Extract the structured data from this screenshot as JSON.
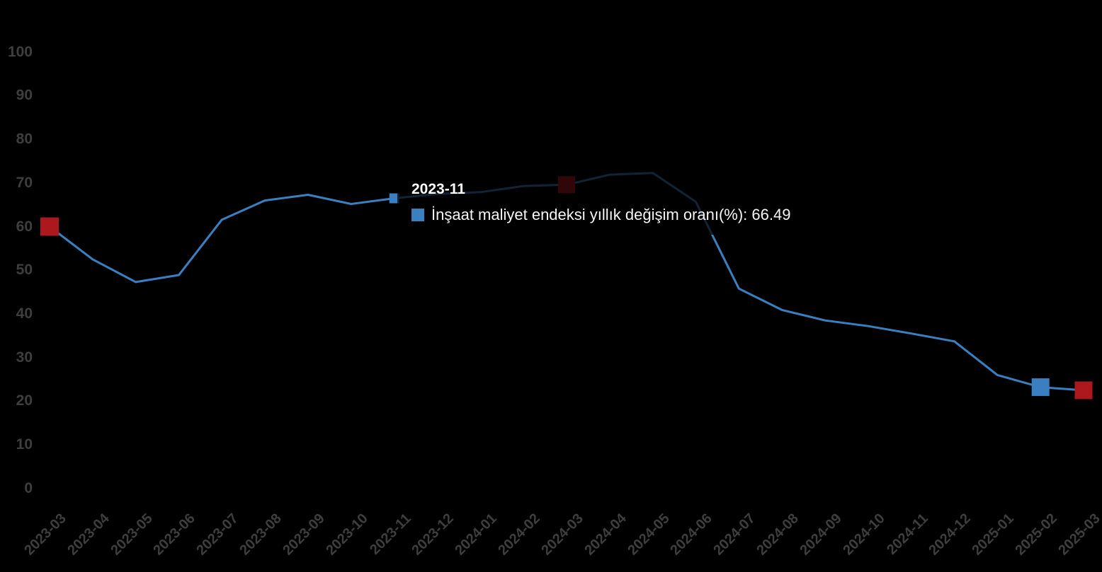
{
  "chart_data": {
    "type": "line",
    "title": "",
    "xlabel": "",
    "ylabel": "",
    "ylim": [
      0,
      100
    ],
    "y_ticks": [
      0,
      10,
      20,
      30,
      40,
      50,
      60,
      70,
      80,
      90,
      100
    ],
    "grid": false,
    "legend_position": "none",
    "background_color": "#000000",
    "categories": [
      "2023-03",
      "2023-04",
      "2023-05",
      "2023-06",
      "2023-07",
      "2023-08",
      "2023-09",
      "2023-10",
      "2023-11",
      "2023-12",
      "2024-01",
      "2024-02",
      "2024-03",
      "2024-04",
      "2024-05",
      "2024-06",
      "2024-07",
      "2024-08",
      "2024-09",
      "2024-10",
      "2024-11",
      "2024-12",
      "2025-01",
      "2025-02",
      "2025-03"
    ],
    "series": [
      {
        "name": "İnşaat maliyet endeksi yıllık değişim oranı(%)",
        "color": "#3a80c1",
        "values": [
          60.0,
          52.5,
          47.3,
          48.9,
          61.6,
          66.0,
          67.3,
          65.2,
          66.49,
          67.5,
          67.9,
          69.3,
          69.6,
          71.9,
          72.3,
          65.7,
          45.8,
          40.9,
          38.5,
          37.2,
          35.5,
          33.7,
          26.0,
          23.2,
          22.5
        ]
      }
    ],
    "markers": [
      {
        "category": "2023-03",
        "color": "#ac181e",
        "size": 26
      },
      {
        "category": "2024-03",
        "color": "#ac181e",
        "size": 24
      },
      {
        "category": "2025-02",
        "color": "#3a80c1",
        "size": 25
      },
      {
        "category": "2025-03",
        "color": "#ac181e",
        "size": 25
      }
    ],
    "hovered_point": {
      "category": "2023-11",
      "value": 66.49,
      "color": "#3a80c1",
      "size": 14
    }
  },
  "tooltip": {
    "title": "2023-11",
    "series_label": "İnşaat maliyet endeksi yıllık değişim oranı(%)",
    "separator": ": ",
    "value": "66.49",
    "swatch_color": "#3a80c1"
  },
  "axis_style": {
    "label_color": "#3e3e3e"
  }
}
